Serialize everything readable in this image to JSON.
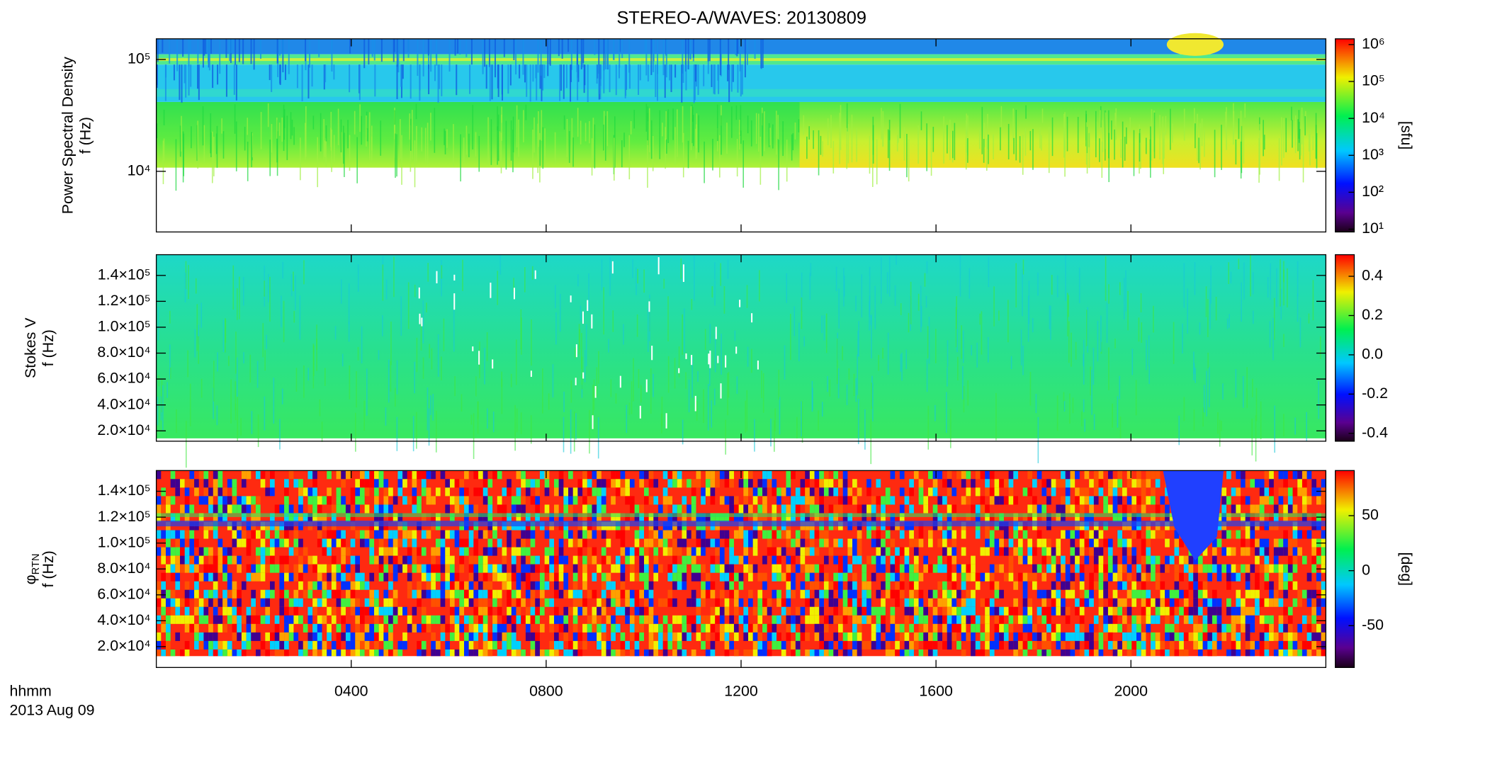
{
  "chart_data": {
    "type": "spectrogram",
    "title": "STEREO-A/WAVES: 20130809",
    "xlabel": "hhmm",
    "date": "2013 Aug 09",
    "xlim": [
      0,
      24
    ],
    "xticks": [
      {
        "value": 4,
        "label": "0400"
      },
      {
        "value": 8,
        "label": "0800"
      },
      {
        "value": 12,
        "label": "1200"
      },
      {
        "value": 16,
        "label": "1600"
      },
      {
        "value": 20,
        "label": "2000"
      }
    ],
    "panels": [
      {
        "ylabel": "Power Spectral Density",
        "ylabel_unit": "f (Hz)",
        "ylog": true,
        "ylim": [
          2870,
          153000
        ],
        "yticks": [
          {
            "value": 10000,
            "label": "10⁴"
          },
          {
            "value": 100000,
            "label": "10⁵"
          }
        ],
        "colorbar": {
          "label": "[sfu]",
          "log": true,
          "lim": [
            8.4,
            1430000
          ],
          "ticks": [
            {
              "value": 10,
              "label": "10¹"
            },
            {
              "value": 100,
              "label": "10²"
            },
            {
              "value": 1000,
              "label": "10³"
            },
            {
              "value": 10000,
              "label": "10⁴"
            },
            {
              "value": 100000,
              "label": "10⁵"
            },
            {
              "value": 1000000,
              "label": "10⁶"
            }
          ]
        }
      },
      {
        "ylabel": "Stokes V",
        "ylabel_unit": "f (Hz)",
        "ylog": false,
        "ylim": [
          12000,
          156000
        ],
        "yticks": [
          {
            "value": 20000,
            "label": "2.0×10⁴"
          },
          {
            "value": 40000,
            "label": "4.0×10⁴"
          },
          {
            "value": 60000,
            "label": "6.0×10⁴"
          },
          {
            "value": 80000,
            "label": "8.0×10⁴"
          },
          {
            "value": 100000,
            "label": "1.0×10⁵"
          },
          {
            "value": 120000,
            "label": "1.2×10⁵"
          },
          {
            "value": 140000,
            "label": "1.4×10⁵"
          }
        ],
        "colorbar": {
          "log": false,
          "lim": [
            -0.44,
            0.51
          ],
          "ticks": [
            -0.4,
            -0.2,
            {
              "value": 0,
              "label": "0.0"
            },
            0.2,
            0.4
          ]
        }
      },
      {
        "ylabel": "φ",
        "ylabel_sub": "RTN",
        "ylabel_unit": "f (Hz)",
        "ylog": false,
        "ylim": [
          3900,
          156000
        ],
        "yticks": [
          {
            "value": 20000,
            "label": "2.0×10⁴"
          },
          {
            "value": 40000,
            "label": "4.0×10⁴"
          },
          {
            "value": 60000,
            "label": "6.0×10⁴"
          },
          {
            "value": 80000,
            "label": "8.0×10⁴"
          },
          {
            "value": 100000,
            "label": "1.0×10⁵"
          },
          {
            "value": 120000,
            "label": "1.2×10⁵"
          },
          {
            "value": 140000,
            "label": "1.4×10⁵"
          }
        ],
        "colorbar": {
          "label": "[deg]",
          "log": false,
          "lim": [
            -88,
            91
          ],
          "ticks": [
            -50,
            0,
            50
          ]
        }
      }
    ]
  }
}
